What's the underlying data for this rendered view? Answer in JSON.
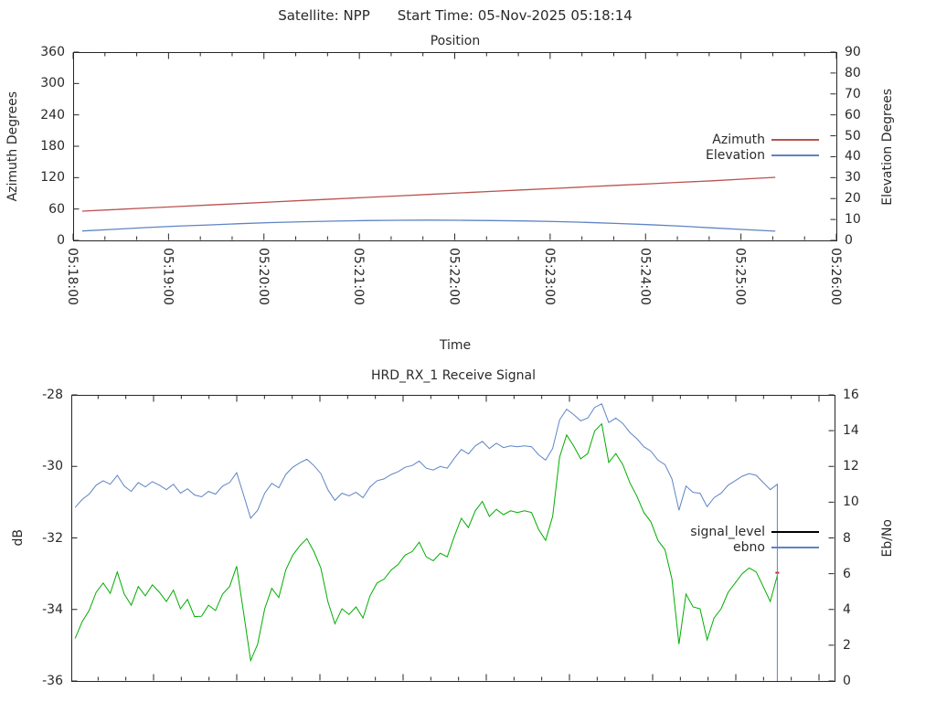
{
  "header": {
    "satellite": "Satellite: NPP",
    "start_time": "Start Time: 05-Nov-2025 05:18:14"
  },
  "chart_data": [
    {
      "type": "line",
      "title": "Position",
      "xlabel": "Time",
      "ylabel_left": "Azimuth Degrees",
      "ylabel_right": "Elevation Degrees",
      "x_tick_labels": [
        "05:18:00",
        "05:19:00",
        "05:20:00",
        "05:21:00",
        "05:22:00",
        "05:23:00",
        "05:24:00",
        "05:25:00",
        "05:26:00"
      ],
      "y_left": {
        "min": 0,
        "max": 360,
        "ticks": [
          0,
          60,
          120,
          180,
          240,
          300,
          360
        ]
      },
      "y_right": {
        "min": 0,
        "max": 90,
        "ticks": [
          0,
          10,
          20,
          30,
          40,
          50,
          60,
          70,
          80,
          90
        ]
      },
      "legend": [
        {
          "label": "Azimuth",
          "color": "#b9524f"
        },
        {
          "label": "Elevation",
          "color": "#5e84c4"
        }
      ],
      "series": [
        {
          "name": "azimuth",
          "axis": "left",
          "color": "#b9524f",
          "start_frac": 0.012,
          "end_frac": 0.92,
          "values": [
            56.0,
            58.9,
            61.8,
            64.7,
            67.6,
            70.5,
            73.4,
            76.3,
            79.2,
            82.1,
            85.0,
            87.9,
            90.8,
            93.7,
            96.6,
            99.5,
            102.4,
            105.3,
            108.2,
            111.1,
            114.0,
            117.2,
            120.5
          ]
        },
        {
          "name": "elevation",
          "axis": "right",
          "color": "#5e84c4",
          "start_frac": 0.012,
          "end_frac": 0.92,
          "values": [
            4.5,
            5.3,
            6.1,
            6.8,
            7.4,
            8.0,
            8.5,
            8.9,
            9.2,
            9.5,
            9.6,
            9.7,
            9.6,
            9.5,
            9.3,
            9.0,
            8.6,
            8.1,
            7.5,
            6.8,
            6.0,
            5.2,
            4.4
          ]
        }
      ]
    },
    {
      "type": "line",
      "title": "HRD_RX_1 Receive Signal",
      "xlabel": "",
      "ylabel_left": "dB",
      "ylabel_right": "Eb/No",
      "x_tick_labels": [],
      "y_left": {
        "min": -36,
        "max": -28,
        "ticks": [
          -36,
          -34,
          -32,
          -30,
          -28
        ]
      },
      "y_right": {
        "min": 0,
        "max": 16,
        "ticks": [
          0,
          2,
          4,
          6,
          8,
          10,
          12,
          14,
          16
        ]
      },
      "legend": [
        {
          "label": "signal_level",
          "color": "#000000"
        },
        {
          "label": "ebno",
          "color": "#5e84c4"
        }
      ],
      "series": [
        {
          "name": "signal_level",
          "axis": "left",
          "color": "#00ae00",
          "end_marker_color": "#cc2222",
          "start_frac": 0.005,
          "end_frac": 0.925,
          "values": [
            -34.81,
            -34.34,
            -34.03,
            -33.52,
            -33.26,
            -33.55,
            -32.95,
            -33.57,
            -33.88,
            -33.36,
            -33.62,
            -33.31,
            -33.52,
            -33.78,
            -33.46,
            -33.98,
            -33.72,
            -34.2,
            -34.19,
            -33.88,
            -34.03,
            -33.57,
            -33.36,
            -32.79,
            -34.09,
            -35.43,
            -34.97,
            -33.98,
            -33.41,
            -33.67,
            -32.9,
            -32.48,
            -32.22,
            -32.02,
            -32.38,
            -32.84,
            -33.78,
            -34.4,
            -33.98,
            -34.14,
            -33.93,
            -34.24,
            -33.62,
            -33.26,
            -33.15,
            -32.9,
            -32.74,
            -32.48,
            -32.38,
            -32.12,
            -32.53,
            -32.64,
            -32.43,
            -32.53,
            -31.96,
            -31.45,
            -31.71,
            -31.24,
            -30.98,
            -31.4,
            -31.2,
            -31.35,
            -31.24,
            -31.29,
            -31.24,
            -31.29,
            -31.76,
            -32.07,
            -31.4,
            -29.74,
            -29.12,
            -29.43,
            -29.79,
            -29.64,
            -29.01,
            -28.81,
            -29.89,
            -29.64,
            -29.95,
            -30.46,
            -30.83,
            -31.29,
            -31.55,
            -32.07,
            -32.33,
            -33.15,
            -34.97,
            -33.57,
            -33.93,
            -33.98,
            -34.85,
            -34.24,
            -33.98,
            -33.52,
            -33.26,
            -33.0,
            -32.84,
            -32.95,
            -33.36,
            -33.78,
            -33.05
          ]
        },
        {
          "name": "ebno",
          "axis": "right",
          "color": "#5e84c4",
          "drop_to_zero": true,
          "start_frac": 0.005,
          "end_frac": 0.925,
          "values": [
            9.7,
            10.15,
            10.45,
            10.95,
            11.2,
            11.0,
            11.5,
            10.9,
            10.6,
            11.1,
            10.85,
            11.15,
            10.95,
            10.7,
            11.0,
            10.5,
            10.75,
            10.4,
            10.3,
            10.6,
            10.45,
            10.9,
            11.1,
            11.65,
            10.4,
            9.1,
            9.55,
            10.5,
            11.05,
            10.8,
            11.55,
            11.95,
            12.2,
            12.4,
            12.05,
            11.6,
            10.7,
            10.1,
            10.5,
            10.35,
            10.55,
            10.25,
            10.85,
            11.2,
            11.3,
            11.55,
            11.7,
            11.95,
            12.05,
            12.3,
            11.9,
            11.8,
            12.0,
            11.9,
            12.45,
            12.95,
            12.7,
            13.15,
            13.4,
            13.0,
            13.3,
            13.05,
            13.15,
            13.1,
            13.15,
            13.1,
            12.65,
            12.35,
            13.0,
            14.6,
            15.2,
            14.9,
            14.55,
            14.7,
            15.3,
            15.5,
            14.45,
            14.7,
            14.4,
            13.9,
            13.55,
            13.1,
            12.85,
            12.35,
            12.1,
            11.3,
            9.55,
            10.9,
            10.55,
            10.5,
            9.75,
            10.25,
            10.5,
            10.95,
            11.2,
            11.45,
            11.6,
            11.5,
            11.1,
            10.7,
            11.0
          ]
        }
      ]
    }
  ]
}
